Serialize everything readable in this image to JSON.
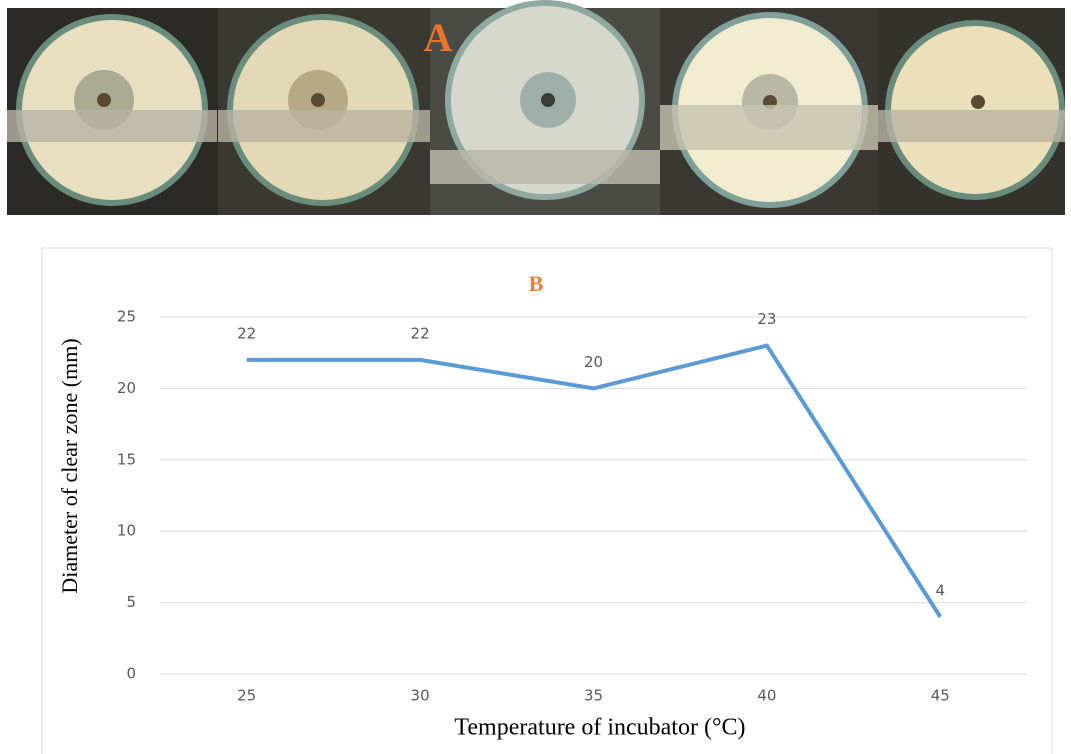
{
  "photo_panel": {
    "label": "A"
  },
  "chart_data": {
    "type": "line",
    "title": "B",
    "x_label": "Temperature of incubator (°C)",
    "y_label": "Diameter of clear zone (mm)",
    "categories": [
      "25",
      "30",
      "35",
      "40",
      "45"
    ],
    "values": [
      22,
      22,
      20,
      23,
      4
    ],
    "color": "#5b9bd5",
    "ylim": [
      0,
      25
    ],
    "yticks": [
      0,
      5,
      10,
      15,
      20,
      25
    ],
    "grid": true
  }
}
